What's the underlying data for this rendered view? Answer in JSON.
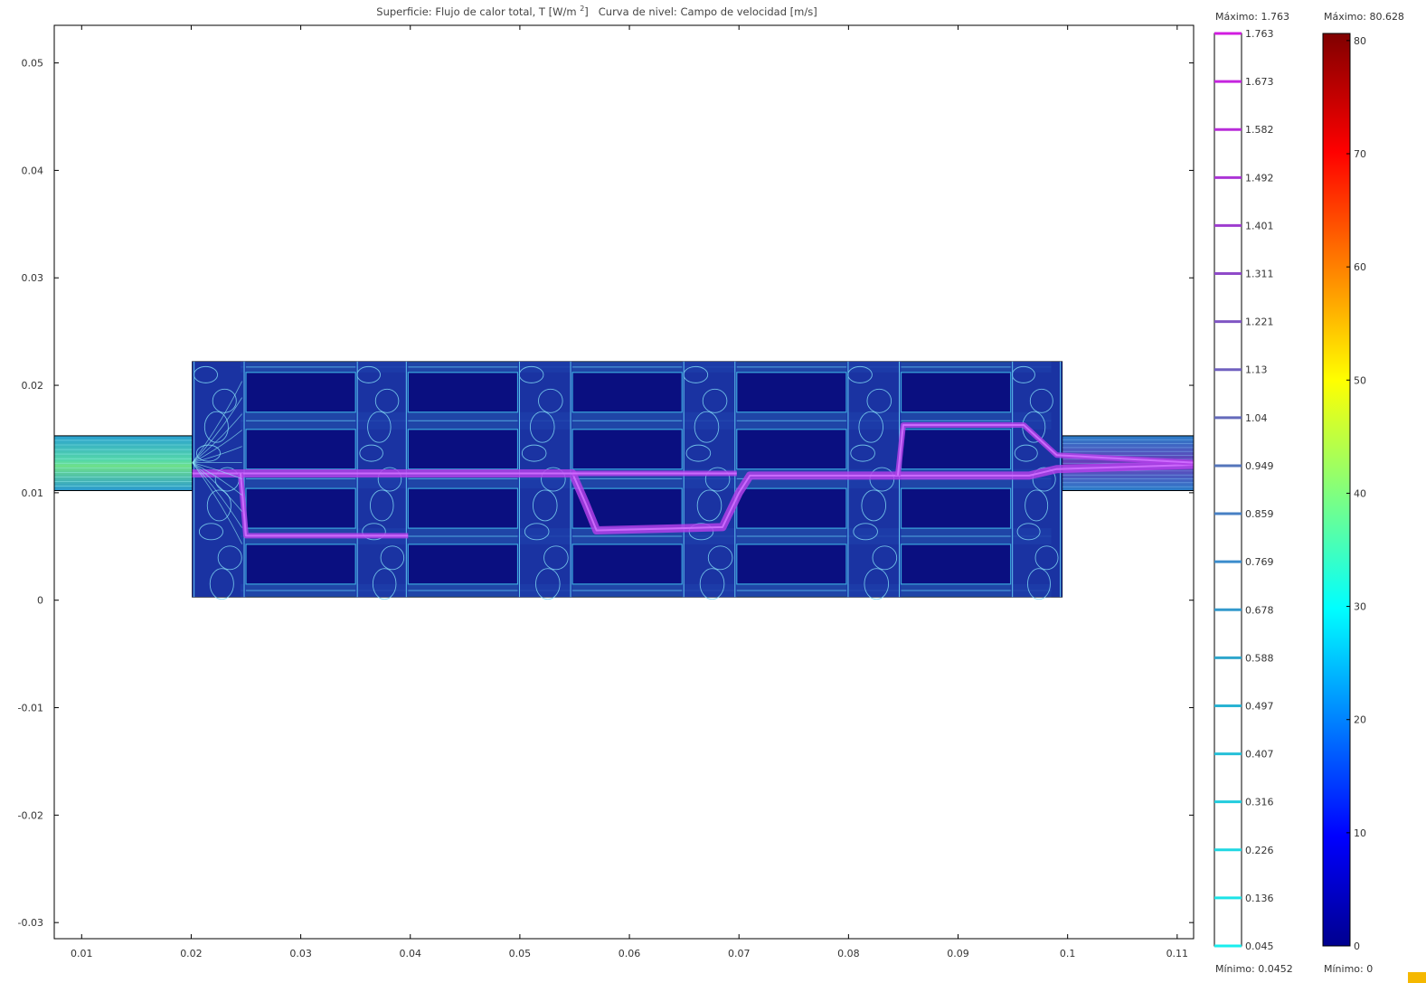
{
  "title": {
    "surface_prefix": "Superficie: Flujo de calor total, T [W/m ",
    "surface_sup": "2",
    "surface_suffix": "]",
    "contour": "Curva de nivel: Campo de velocidad [m/s]"
  },
  "chart_data": {
    "type": "heatmap",
    "xlim": [
      0.0075,
      0.1115
    ],
    "ylim": [
      -0.0315,
      0.0535
    ],
    "xticks": [
      0.01,
      0.02,
      0.03,
      0.04,
      0.05,
      0.06,
      0.07,
      0.08,
      0.09,
      0.1,
      0.11
    ],
    "xtick_labels": [
      "0.01",
      "0.02",
      "0.03",
      "0.04",
      "0.05",
      "0.06",
      "0.07",
      "0.08",
      "0.09",
      "0.1",
      "0.11"
    ],
    "yticks": [
      0.05,
      0.04,
      0.03,
      0.02,
      0.01,
      0,
      -0.01,
      -0.02,
      -0.03
    ],
    "ytick_labels": [
      "0.05",
      "0.04",
      "0.03",
      "0.02",
      "0.01",
      "0",
      "-0.01",
      "-0.02",
      "-0.03"
    ],
    "grid": false,
    "geometry": {
      "inlet": {
        "x": [
          0.0075,
          0.0201
        ],
        "y": [
          0.0102,
          0.0153
        ]
      },
      "chamber": {
        "x": [
          0.0201,
          0.0995
        ],
        "y": [
          0.0003,
          0.0222
        ]
      },
      "outlet": {
        "x": [
          0.0995,
          0.1115
        ],
        "y": [
          0.0102,
          0.0153
        ]
      },
      "block_columns": [
        [
          0.025,
          0.035
        ],
        [
          0.0398,
          0.0498
        ],
        [
          0.0548,
          0.0648
        ],
        [
          0.0698,
          0.0798
        ],
        [
          0.0848,
          0.0948
        ]
      ],
      "block_rows": [
        [
          0.0015,
          0.0052
        ],
        [
          0.0067,
          0.0104
        ],
        [
          0.0122,
          0.0159
        ],
        [
          0.0175,
          0.0212
        ]
      ]
    },
    "contour_colorbar": {
      "label_max": "Máximo: 1.763",
      "label_min": "Mínimo: 0.0452",
      "levels": [
        "1.763",
        "1.673",
        "1.582",
        "1.492",
        "1.401",
        "1.311",
        "1.221",
        "1.13",
        "1.04",
        "0.949",
        "0.859",
        "0.769",
        "0.678",
        "0.588",
        "0.497",
        "0.407",
        "0.316",
        "0.226",
        "0.136",
        "0.045"
      ],
      "colors": [
        "#d21ce0",
        "#c524de",
        "#b82cd9",
        "#ab34d6",
        "#9e3ccf",
        "#8f4ac9",
        "#7f55c3",
        "#7060bf",
        "#646abb",
        "#5575bb",
        "#4780c4",
        "#3b8ccc",
        "#3399cc",
        "#2ea6cc",
        "#29b3d3",
        "#25c0d8",
        "#21ccdd",
        "#1ed7e2",
        "#1ce3e7",
        "#19eeee"
      ],
      "range": [
        0.0452,
        1.763
      ]
    },
    "surface_colorbar": {
      "label_max": "Máximo: 80.628",
      "label_min": "Mínimo: 0",
      "ticks": [
        "80",
        "70",
        "60",
        "50",
        "40",
        "30",
        "20",
        "10",
        "0"
      ],
      "tick_values": [
        80,
        70,
        60,
        50,
        40,
        30,
        20,
        10,
        0
      ],
      "range": [
        0,
        80.628
      ],
      "colormap": [
        "#00008f",
        "#0000ff",
        "#00ffff",
        "#ffff00",
        "#ff0000",
        "#800000"
      ]
    },
    "colors": {
      "block_fill": "#0a0f80",
      "fluid_fill": "#12137e",
      "contour_line": "#38a8e0",
      "high_velocity": "#b040e8",
      "inlet_fill": "#3ab6c8",
      "frame": "#000000"
    }
  }
}
